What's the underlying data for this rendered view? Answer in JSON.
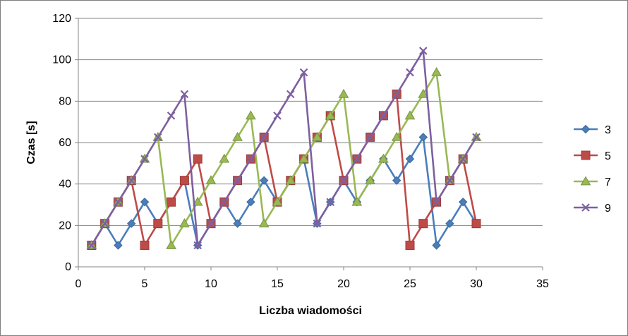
{
  "chart_data": {
    "type": "line",
    "title": "",
    "xlabel": "Liczba wiadomości",
    "ylabel": "Czas [s]",
    "xlim": [
      0,
      35
    ],
    "ylim": [
      0,
      120
    ],
    "xticks": [
      0,
      5,
      10,
      15,
      20,
      25,
      30,
      35
    ],
    "yticks": [
      0,
      20,
      40,
      60,
      80,
      100,
      120
    ],
    "grid": "horizontal",
    "legend_position": "right",
    "series": [
      {
        "name": "3",
        "color": "#4a7ebb",
        "marker": "diamond",
        "x": [
          1,
          2,
          3,
          4,
          5,
          6,
          7,
          8,
          9,
          10,
          11,
          12,
          13,
          14,
          15,
          16,
          17,
          18,
          19,
          20,
          21,
          22,
          23,
          24,
          25,
          26,
          27,
          28,
          29,
          30
        ],
        "y": [
          10.4,
          20.9,
          10.4,
          20.9,
          31.3,
          20.9,
          31.3,
          41.7,
          10.4,
          20.9,
          31.3,
          20.9,
          31.3,
          41.7,
          31.3,
          41.7,
          52.1,
          20.9,
          31.3,
          41.7,
          31.3,
          41.7,
          52.1,
          41.7,
          52.1,
          62.6,
          10.4,
          20.9,
          31.3,
          20.9
        ]
      },
      {
        "name": "5",
        "color": "#be4b48",
        "marker": "square",
        "x": [
          1,
          2,
          3,
          4,
          5,
          6,
          7,
          8,
          9,
          10,
          11,
          12,
          13,
          14,
          15,
          16,
          17,
          18,
          19,
          20,
          21,
          22,
          23,
          24,
          25,
          26,
          27,
          28,
          29,
          30
        ],
        "y": [
          10.4,
          20.9,
          31.3,
          41.7,
          10.4,
          20.9,
          31.3,
          41.7,
          52.1,
          20.9,
          31.3,
          41.7,
          52.1,
          62.6,
          31.3,
          41.7,
          52.1,
          62.6,
          73.0,
          41.7,
          52.1,
          62.6,
          73.0,
          83.4,
          10.4,
          20.9,
          31.3,
          41.7,
          52.1,
          20.9
        ]
      },
      {
        "name": "7",
        "color": "#98b954",
        "marker": "triangle",
        "x": [
          1,
          2,
          3,
          4,
          5,
          6,
          7,
          8,
          9,
          10,
          11,
          12,
          13,
          14,
          15,
          16,
          17,
          18,
          19,
          20,
          21,
          22,
          23,
          24,
          25,
          26,
          27,
          28,
          29,
          30
        ],
        "y": [
          10.4,
          20.9,
          31.3,
          41.7,
          52.1,
          62.6,
          10.4,
          20.9,
          31.3,
          41.7,
          52.1,
          62.6,
          73.0,
          20.9,
          31.3,
          41.7,
          52.1,
          62.6,
          73.0,
          83.4,
          31.3,
          41.7,
          52.1,
          62.6,
          73.0,
          83.4,
          93.9,
          41.7,
          52.1,
          62.6
        ]
      },
      {
        "name": "9",
        "color": "#7d60a0",
        "marker": "x",
        "x": [
          1,
          2,
          3,
          4,
          5,
          6,
          7,
          8,
          9,
          10,
          11,
          12,
          13,
          14,
          15,
          16,
          17,
          18,
          19,
          20,
          21,
          22,
          23,
          24,
          25,
          26,
          27,
          28,
          29,
          30
        ],
        "y": [
          10.4,
          20.9,
          31.3,
          41.7,
          52.1,
          62.6,
          73.0,
          83.4,
          10.4,
          20.9,
          31.3,
          41.7,
          52.1,
          62.6,
          73.0,
          83.4,
          93.9,
          20.9,
          31.3,
          41.7,
          52.1,
          62.6,
          73.0,
          83.4,
          93.9,
          104.3,
          31.3,
          41.7,
          52.1,
          62.6
        ]
      }
    ]
  }
}
